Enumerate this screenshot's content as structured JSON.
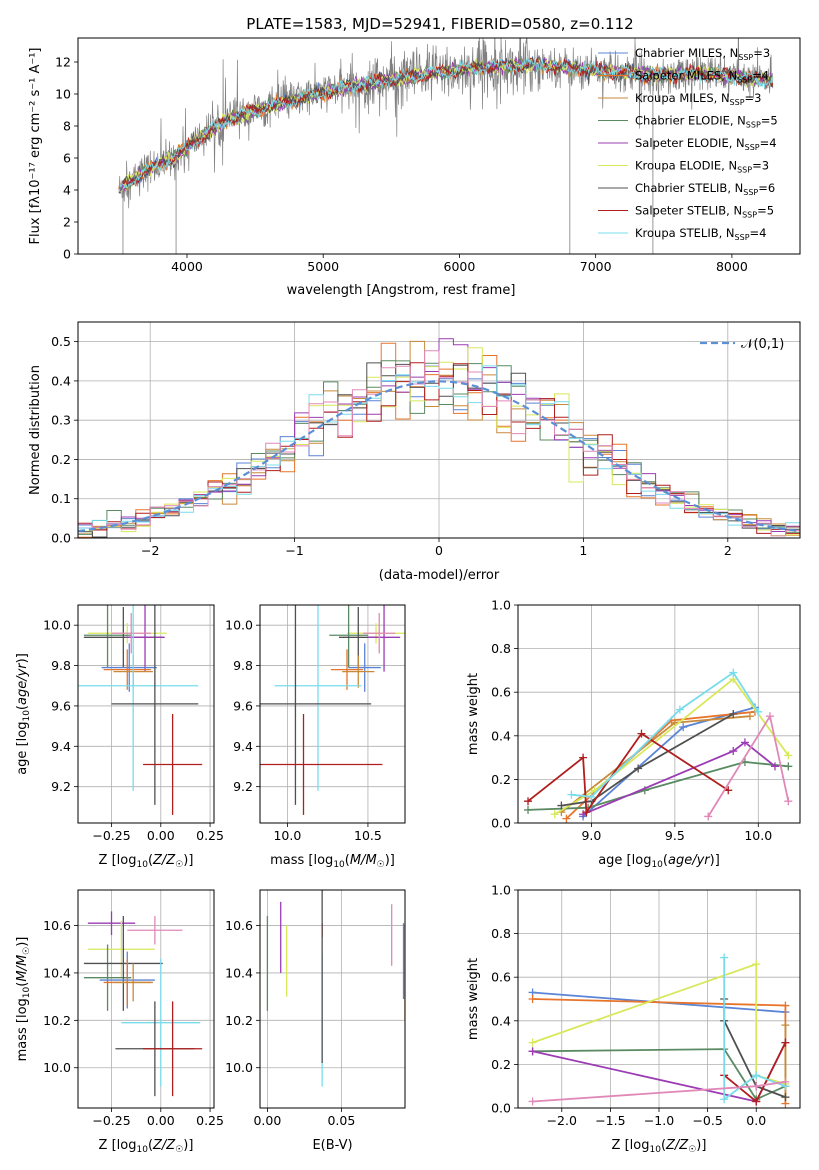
{
  "figure": {
    "title": "PLATE=1583, MJD=52941, FIBERID=0580, z=0.112"
  },
  "colors": {
    "Chabrier MILES": "#5b84d6",
    "Salpeter MILES": "#e8742a",
    "Kroupa MILES": "#c98a3a",
    "Chabrier ELODIE": "#5a8a62",
    "Salpeter ELODIE": "#9c3cb4",
    "Kroupa ELODIE": "#d8e85a",
    "Chabrier STELIB": "#505050",
    "Salpeter STELIB": "#b01e1e",
    "Kroupa STELIB": "#78dcec",
    "Pink": "#e088b8",
    "Gaussian": "#5b8fd6",
    "Data": "#808080"
  },
  "chart_data": [
    {
      "id": "spectrum",
      "type": "line",
      "xlabel": "wavelength [Angstrom, rest frame]",
      "ylabel": "Flux [f",
      "ylabel_full": "Flux [fλ10⁻¹⁷ erg cm⁻² s⁻¹ A⁻¹]",
      "xlim": [
        3200,
        8500
      ],
      "ylim": [
        0,
        13.5
      ],
      "xticks": [
        4000,
        5000,
        6000,
        7000,
        8000
      ],
      "yticks": [
        0,
        2,
        4,
        6,
        8,
        10,
        12
      ],
      "grid": false,
      "legend_position": "right",
      "legend": [
        {
          "label": "Chabrier MILES",
          "nssp": "3",
          "color_key": "Chabrier MILES"
        },
        {
          "label": "Salpeter MILES",
          "nssp": "4",
          "color_key": "Salpeter MILES"
        },
        {
          "label": "Kroupa MILES",
          "nssp": "3",
          "color_key": "Kroupa MILES"
        },
        {
          "label": "Chabrier ELODIE",
          "nssp": "5",
          "color_key": "Chabrier ELODIE"
        },
        {
          "label": "Salpeter ELODIE",
          "nssp": "4",
          "color_key": "Salpeter ELODIE"
        },
        {
          "label": "Kroupa ELODIE",
          "nssp": "3",
          "color_key": "Kroupa ELODIE"
        },
        {
          "label": "Chabrier STELIB",
          "nssp": "6",
          "color_key": "Chabrier STELIB"
        },
        {
          "label": "Salpeter STELIB",
          "nssp": "5",
          "color_key": "Salpeter STELIB"
        },
        {
          "label": "Kroupa STELIB",
          "nssp": "4",
          "color_key": "Kroupa STELIB"
        }
      ],
      "continuum": [
        [
          3500,
          4.0
        ],
        [
          3700,
          5.2
        ],
        [
          3900,
          6.0
        ],
        [
          4100,
          7.3
        ],
        [
          4300,
          8.4
        ],
        [
          4600,
          9.2
        ],
        [
          4900,
          9.9
        ],
        [
          5200,
          10.5
        ],
        [
          5500,
          10.9
        ],
        [
          5800,
          11.3
        ],
        [
          6200,
          11.7
        ],
        [
          6600,
          11.8
        ],
        [
          7000,
          11.5
        ],
        [
          7400,
          11.2
        ],
        [
          7800,
          11.3
        ],
        [
          8200,
          10.9
        ],
        [
          8300,
          10.9
        ]
      ],
      "spikes": [
        [
          3530,
          0
        ],
        [
          3920,
          0
        ],
        [
          6810,
          0
        ],
        [
          7420,
          0
        ]
      ]
    },
    {
      "id": "residuals",
      "type": "line",
      "xlabel": "(data-model)/error",
      "ylabel": "Normed distribution",
      "xlim": [
        -2.5,
        2.5
      ],
      "ylim": [
        0,
        0.55
      ],
      "xticks": [
        -2,
        -1,
        0,
        1,
        2
      ],
      "yticks": [
        0.0,
        0.1,
        0.2,
        0.3,
        0.4,
        0.5
      ],
      "grid": true,
      "legend_position": "top-right",
      "legend": [
        {
          "label": "𝒩(0,1)",
          "color_key": "Gaussian"
        }
      ],
      "gaussian": {
        "mean": 0,
        "sigma": 1,
        "style": "dashed"
      },
      "hist_bins": [
        -2.5,
        2.5,
        0.1
      ],
      "hist_series": [
        "Chabrier MILES",
        "Salpeter MILES",
        "Kroupa MILES",
        "Chabrier ELODIE",
        "Salpeter ELODIE",
        "Kroupa ELODIE",
        "Chabrier STELIB",
        "Salpeter STELIB",
        "Kroupa STELIB",
        "Pink"
      ]
    },
    {
      "id": "age_vs_Z",
      "type": "scatter",
      "xlabel": "Z [log",
      "xlabel_full": "Z [log₁₀(Z/Z☉)]",
      "ylabel_full": "age  [log₁₀(age/yr)]",
      "xlim": [
        -0.42,
        0.27
      ],
      "ylim": [
        9.02,
        10.1
      ],
      "xticks": [
        -0.25,
        0.0,
        0.25
      ],
      "yticks": [
        9.2,
        9.4,
        9.6,
        9.8,
        10.0
      ],
      "grid": true,
      "points": [
        {
          "s": "Kroupa ELODIE",
          "x": -0.17,
          "y": 9.96,
          "xerr": 0.2,
          "yerr": 0.05
        },
        {
          "s": "Chabrier ELODIE",
          "x": -0.27,
          "y": 9.95,
          "xerr": 0.12,
          "yerr": 0.16
        },
        {
          "s": "Chabrier STELIB",
          "x": -0.19,
          "y": 9.94,
          "xerr": 0.2,
          "yerr": 0.15
        },
        {
          "s": "Salpeter ELODIE",
          "x": -0.08,
          "y": 9.94,
          "xerr": 0.1,
          "yerr": 0.17
        },
        {
          "s": "Pink",
          "x": -0.15,
          "y": 9.96,
          "xerr": 0.1,
          "yerr": 0.1
        },
        {
          "s": "Chabrier MILES",
          "x": -0.16,
          "y": 9.79,
          "xerr": 0.14,
          "yerr": 0.12
        },
        {
          "s": "Salpeter MILES",
          "x": -0.17,
          "y": 9.78,
          "xerr": 0.12,
          "yerr": 0.1
        },
        {
          "s": "Kroupa MILES",
          "x": -0.14,
          "y": 9.77,
          "xerr": 0.1,
          "yerr": 0.08
        },
        {
          "s": "Kroupa STELIB",
          "x": -0.14,
          "y": 9.7,
          "xerr": 0.33,
          "yerr": 0.52
        },
        {
          "s": "Chabrier STELIB",
          "x": -0.03,
          "y": 9.61,
          "xerr": 0.22,
          "yerr": 0.5
        },
        {
          "s": "Salpeter STELIB",
          "x": 0.06,
          "y": 9.31,
          "xerr": 0.15,
          "yerr": 0.25
        }
      ]
    },
    {
      "id": "age_vs_mass",
      "type": "scatter",
      "xlabel_full": "mass [log₁₀(M/M☉)]",
      "xlim": [
        9.83,
        10.73
      ],
      "ylim": [
        9.02,
        10.1
      ],
      "xticks": [
        10.0,
        10.5
      ],
      "yticks": [
        9.2,
        9.4,
        9.6,
        9.8,
        10.0
      ],
      "grid": true,
      "points": [
        {
          "s": "Kroupa ELODIE",
          "x": 10.55,
          "y": 9.96,
          "xerr": 0.18,
          "yerr": 0.05
        },
        {
          "s": "Chabrier ELODIE",
          "x": 10.38,
          "y": 9.95,
          "xerr": 0.12,
          "yerr": 0.16
        },
        {
          "s": "Chabrier STELIB",
          "x": 10.44,
          "y": 9.94,
          "xerr": 0.12,
          "yerr": 0.15
        },
        {
          "s": "Salpeter ELODIE",
          "x": 10.6,
          "y": 9.94,
          "xerr": 0.1,
          "yerr": 0.17
        },
        {
          "s": "Pink",
          "x": 10.57,
          "y": 9.96,
          "xerr": 0.1,
          "yerr": 0.1
        },
        {
          "s": "Chabrier MILES",
          "x": 10.48,
          "y": 9.79,
          "xerr": 0.1,
          "yerr": 0.12
        },
        {
          "s": "Salpeter MILES",
          "x": 10.37,
          "y": 9.78,
          "xerr": 0.1,
          "yerr": 0.1
        },
        {
          "s": "Kroupa MILES",
          "x": 10.44,
          "y": 9.77,
          "xerr": 0.1,
          "yerr": 0.08
        },
        {
          "s": "Kroupa STELIB",
          "x": 10.19,
          "y": 9.7,
          "xerr": 0.27,
          "yerr": 0.52
        },
        {
          "s": "Chabrier STELIB",
          "x": 10.05,
          "y": 9.61,
          "xerr": 0.47,
          "yerr": 0.5
        },
        {
          "s": "Salpeter STELIB",
          "x": 10.1,
          "y": 9.31,
          "xerr": 0.49,
          "yerr": 0.25
        }
      ]
    },
    {
      "id": "weight_vs_age",
      "type": "line",
      "xlabel_full": "age  [log₁₀(age/yr)]",
      "ylabel": "mass weight",
      "xlim": [
        8.56,
        10.25
      ],
      "ylim": [
        0,
        1
      ],
      "xticks": [
        9.0,
        9.5,
        10.0
      ],
      "yticks": [
        0.0,
        0.2,
        0.4,
        0.6,
        0.8,
        1.0
      ],
      "grid": true,
      "series": [
        {
          "s": "Chabrier MILES",
          "pts": [
            [
              8.95,
              0.03
            ],
            [
              9.55,
              0.44
            ],
            [
              9.98,
              0.53
            ]
          ]
        },
        {
          "s": "Salpeter MILES",
          "pts": [
            [
              8.85,
              0.02
            ],
            [
              9.48,
              0.47
            ],
            [
              9.98,
              0.51
            ]
          ]
        },
        {
          "s": "Kroupa MILES",
          "pts": [
            [
              8.82,
              0.05
            ],
            [
              9.5,
              0.46
            ],
            [
              9.95,
              0.49
            ]
          ]
        },
        {
          "s": "Chabrier ELODIE",
          "pts": [
            [
              8.62,
              0.06
            ],
            [
              8.98,
              0.07
            ],
            [
              9.32,
              0.15
            ],
            [
              9.92,
              0.28
            ],
            [
              10.18,
              0.26
            ]
          ]
        },
        {
          "s": "Salpeter ELODIE",
          "pts": [
            [
              8.95,
              0.04
            ],
            [
              9.85,
              0.33
            ],
            [
              9.92,
              0.37
            ],
            [
              10.1,
              0.26
            ]
          ]
        },
        {
          "s": "Kroupa ELODIE",
          "pts": [
            [
              8.78,
              0.04
            ],
            [
              9.02,
              0.15
            ],
            [
              9.85,
              0.66
            ],
            [
              10.18,
              0.31
            ]
          ]
        },
        {
          "s": "Chabrier STELIB",
          "pts": [
            [
              8.82,
              0.08
            ],
            [
              9.0,
              0.1
            ],
            [
              9.28,
              0.25
            ],
            [
              9.85,
              0.5
            ]
          ]
        },
        {
          "s": "Salpeter STELIB",
          "pts": [
            [
              8.62,
              0.1
            ],
            [
              8.95,
              0.3
            ],
            [
              8.97,
              0.05
            ],
            [
              9.3,
              0.41
            ],
            [
              9.82,
              0.15
            ]
          ]
        },
        {
          "s": "Kroupa STELIB",
          "pts": [
            [
              8.88,
              0.13
            ],
            [
              9.0,
              0.12
            ],
            [
              9.53,
              0.52
            ],
            [
              9.85,
              0.69
            ],
            [
              10.0,
              0.51
            ]
          ]
        },
        {
          "s": "Pink",
          "pts": [
            [
              9.7,
              0.03
            ],
            [
              10.07,
              0.49
            ],
            [
              10.18,
              0.1
            ]
          ]
        }
      ]
    },
    {
      "id": "mass_vs_Z",
      "type": "scatter",
      "xlabel_full": "Z [log₁₀(Z/Z☉)]",
      "ylabel_full": "mass [log₁₀(M/M☉)]",
      "xlim": [
        -0.42,
        0.27
      ],
      "ylim": [
        9.83,
        10.75
      ],
      "xticks": [
        -0.25,
        0.0,
        0.25
      ],
      "yticks": [
        10.0,
        10.2,
        10.4,
        10.6
      ],
      "grid": true,
      "points": [
        {
          "s": "Salpeter ELODIE",
          "x": -0.25,
          "y": 10.61,
          "xerr": 0.12,
          "yerr": 0.05
        },
        {
          "s": "Pink",
          "x": -0.03,
          "y": 10.58,
          "xerr": 0.14,
          "yerr": 0.06
        },
        {
          "s": "Kroupa ELODIE",
          "x": -0.2,
          "y": 10.5,
          "xerr": 0.17,
          "yerr": 0.12
        },
        {
          "s": "Chabrier ELODIE",
          "x": -0.27,
          "y": 10.38,
          "xerr": 0.12,
          "yerr": 0.14
        },
        {
          "s": "Chabrier STELIB",
          "x": -0.19,
          "y": 10.44,
          "xerr": 0.2,
          "yerr": 0.2
        },
        {
          "s": "Chabrier MILES",
          "x": -0.17,
          "y": 10.37,
          "xerr": 0.14,
          "yerr": 0.12
        },
        {
          "s": "Salpeter MILES",
          "x": -0.17,
          "y": 10.36,
          "xerr": 0.12,
          "yerr": 0.1
        },
        {
          "s": "Kroupa MILES",
          "x": -0.14,
          "y": 10.36,
          "xerr": 0.1,
          "yerr": 0.08
        },
        {
          "s": "Kroupa STELIB",
          "x": 0.0,
          "y": 10.19,
          "xerr": 0.2,
          "yerr": 0.27
        },
        {
          "s": "Chabrier STELIB",
          "x": -0.03,
          "y": 10.08,
          "xerr": 0.2,
          "yerr": 0.2
        },
        {
          "s": "Salpeter STELIB",
          "x": 0.06,
          "y": 10.08,
          "xerr": 0.15,
          "yerr": 0.2
        }
      ]
    },
    {
      "id": "mass_vs_ebv",
      "type": "scatter",
      "xlabel": "E(B-V)",
      "xlim": [
        -0.005,
        0.093
      ],
      "ylim": [
        9.83,
        10.75
      ],
      "xticks": [
        0.0,
        0.05
      ],
      "yticks": [
        10.0,
        10.2,
        10.4,
        10.6
      ],
      "grid": true,
      "points": [
        {
          "s": "Chabrier ELODIE",
          "x": 0.0,
          "y": 10.44,
          "xerr": 0,
          "yerr": 0.2
        },
        {
          "s": "Salpeter ELODIE",
          "x": 0.009,
          "y": 10.55,
          "xerr": 0,
          "yerr": 0.15
        },
        {
          "s": "Kroupa ELODIE",
          "x": 0.013,
          "y": 10.45,
          "xerr": 0,
          "yerr": 0.15
        },
        {
          "s": "Salpeter STELIB",
          "x": 0.037,
          "y": 10.58,
          "xerr": 0,
          "yerr": 0.03
        },
        {
          "s": "Kroupa STELIB",
          "x": 0.037,
          "y": 10.2,
          "xerr": 0,
          "yerr": 0.28
        },
        {
          "s": "Chabrier STELIB",
          "x": 0.037,
          "y": 10.4,
          "xerr": 0,
          "yerr": 0.38
        },
        {
          "s": "Pink",
          "x": 0.084,
          "y": 10.56,
          "xerr": 0,
          "yerr": 0.13
        },
        {
          "s": "Salpeter MILES",
          "x": 0.093,
          "y": 10.4,
          "xerr": 0,
          "yerr": 0.2
        },
        {
          "s": "Chabrier MILES",
          "x": 0.092,
          "y": 10.45,
          "xerr": 0,
          "yerr": 0.16
        }
      ]
    },
    {
      "id": "weight_vs_Z",
      "type": "line",
      "xlabel_full": "Z [log₁₀(Z/Z☉)]",
      "ylabel": "mass weight",
      "xlim": [
        -2.45,
        0.45
      ],
      "ylim": [
        0,
        1
      ],
      "xticks": [
        -2.0,
        -1.5,
        -1.0,
        -0.5,
        0.0
      ],
      "grid": true,
      "series": [
        {
          "s": "Chabrier MILES",
          "pts": [
            [
              -2.3,
              0.53
            ],
            [
              0.3,
              0.44
            ]
          ]
        },
        {
          "s": "Salpeter MILES",
          "pts": [
            [
              -2.3,
              0.5
            ],
            [
              0.3,
              0.47
            ],
            [
              0.3,
              0.02
            ]
          ]
        },
        {
          "s": "Kroupa MILES",
          "pts": [
            [
              0.3,
              0.38
            ],
            [
              0.3,
              0.05
            ]
          ]
        },
        {
          "s": "Chabrier ELODIE",
          "pts": [
            [
              -2.3,
              0.26
            ],
            [
              -0.33,
              0.27
            ],
            [
              0.0,
              0.04
            ],
            [
              0.3,
              0.1
            ]
          ]
        },
        {
          "s": "Salpeter ELODIE",
          "pts": [
            [
              -2.3,
              0.26
            ],
            [
              0.0,
              0.03
            ],
            [
              0.3,
              0.3
            ]
          ]
        },
        {
          "s": "Kroupa ELODIE",
          "pts": [
            [
              -2.3,
              0.3
            ],
            [
              0.0,
              0.66
            ],
            [
              0.0,
              0.15
            ],
            [
              0.3,
              0.11
            ]
          ]
        },
        {
          "s": "Chabrier STELIB",
          "pts": [
            [
              -0.33,
              0.5
            ],
            [
              -0.33,
              0.4
            ],
            [
              0.0,
              0.1
            ],
            [
              0.3,
              0.05
            ]
          ]
        },
        {
          "s": "Salpeter STELIB",
          "pts": [
            [
              -0.33,
              0.15
            ],
            [
              0.0,
              0.03
            ],
            [
              0.3,
              0.3
            ]
          ]
        },
        {
          "s": "Kroupa STELIB",
          "pts": [
            [
              -0.33,
              0.69
            ],
            [
              -0.33,
              0.04
            ],
            [
              0.0,
              0.15
            ],
            [
              0.3,
              0.1
            ]
          ]
        },
        {
          "s": "Pink",
          "pts": [
            [
              -2.3,
              0.03
            ],
            [
              0.0,
              0.1
            ],
            [
              0.3,
              0.12
            ]
          ]
        }
      ]
    }
  ]
}
